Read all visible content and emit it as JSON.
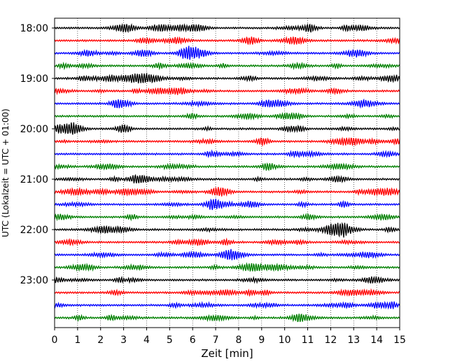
{
  "chart_data": {
    "type": "line",
    "title": "",
    "xlabel": "Zeit  [min]",
    "ylabel": "UTC (Lokalzeit = UTC + 01:00)",
    "xlim": [
      0,
      15
    ],
    "x_ticks": [
      "0",
      "1",
      "2",
      "3",
      "4",
      "5",
      "6",
      "7",
      "8",
      "9",
      "10",
      "11",
      "12",
      "13",
      "14",
      "15"
    ],
    "y_ticks": [
      {
        "label": "18:00",
        "trace": 0
      },
      {
        "label": "19:00",
        "trace": 4
      },
      {
        "label": "20:00",
        "trace": 8
      },
      {
        "label": "21:00",
        "trace": 12
      },
      {
        "label": "22:00",
        "trace": 16
      },
      {
        "label": "23:00",
        "trace": 20
      }
    ],
    "grid": "vertical-dotted",
    "trace_minutes": 15,
    "trace_count": 24,
    "colors": [
      "#000000",
      "#ff0000",
      "#0000ff",
      "#008000"
    ]
  }
}
